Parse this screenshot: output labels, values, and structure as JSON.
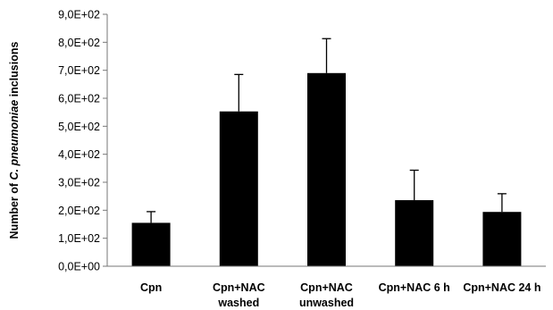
{
  "chart_data": {
    "type": "bar",
    "title": "",
    "xlabel": "",
    "ylabel_parts": [
      "Number of ",
      "C. pneumoniae",
      " inclusions"
    ],
    "categories": [
      [
        "Cpn"
      ],
      [
        "Cpn+NAC",
        "washed"
      ],
      [
        "Cpn+NAC",
        "unwashed"
      ],
      [
        "Cpn+NAC 6 h"
      ],
      [
        "Cpn+NAC 24 h"
      ]
    ],
    "values": [
      155,
      553,
      690,
      236,
      194
    ],
    "error_upper": [
      40,
      132,
      123,
      107,
      65
    ],
    "ylim": [
      0,
      900
    ],
    "yticks": [
      0,
      100,
      200,
      300,
      400,
      500,
      600,
      700,
      800,
      900
    ],
    "ytick_labels": [
      "0,0E+00",
      "1,0E+02",
      "2,0E+02",
      "3,0E+02",
      "4,0E+02",
      "5,0E+02",
      "6,0E+02",
      "7,0E+02",
      "8,0E+02",
      "9,0E+02"
    ],
    "grid": false,
    "legend": "none",
    "bar_color": "#000000"
  }
}
